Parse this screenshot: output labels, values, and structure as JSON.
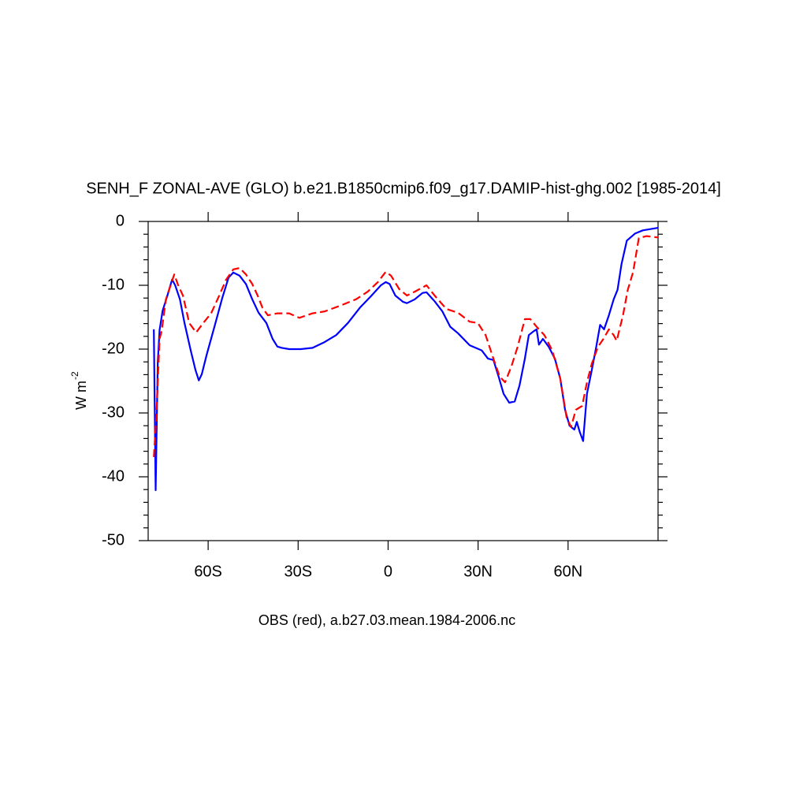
{
  "chart_data": {
    "type": "line",
    "title": "SENH_F ZONAL-AVE (GLO) b.e21.B1850cmip6.f09_g17.DAMIP-hist-ghg.002 [1985-2014]",
    "ylabel": "W m",
    "ylabel_sup": "-2",
    "xlabel": "OBS (red), a.b27.03.mean.1984-2006.nc",
    "xlim": [
      -80,
      90
    ],
    "ylim": [
      -50,
      0
    ],
    "xticks": [
      {
        "value": -60,
        "label": "60S"
      },
      {
        "value": -30,
        "label": "30S"
      },
      0,
      {
        "value": 30,
        "label": "30N"
      },
      {
        "value": 60,
        "label": "60N"
      }
    ],
    "yticks": [
      0,
      -10,
      -20,
      -30,
      -40,
      -50
    ],
    "yminor": [
      -2,
      -4,
      -6,
      -8,
      -12,
      -14,
      -16,
      -18,
      -22,
      -24,
      -26,
      -28,
      -32,
      -34,
      -36,
      -38,
      -42,
      -44,
      -46,
      -48
    ],
    "series": [
      {
        "color": "#0000ff",
        "dash": false,
        "x": [
          -78.1,
          -77.5,
          -76.8,
          -76.2,
          -75.2,
          -73.6,
          -72,
          -71,
          -69.4,
          -67.9,
          -65.8,
          -64.2,
          -63.1,
          -62.1,
          -60.5,
          -57.9,
          -55.3,
          -53.2,
          -51.6,
          -49.5,
          -47.4,
          -45.3,
          -43.2,
          -40.6,
          -38.5,
          -36.9,
          -35.4,
          -33,
          -29.1,
          -25.2,
          -21.2,
          -17.3,
          -13.4,
          -9.4,
          -5.5,
          -2.4,
          -0.8,
          0.5,
          2.4,
          5,
          6.3,
          8.9,
          11.5,
          12.8,
          15.5,
          18.1,
          20.7,
          23.3,
          27.2,
          31.2,
          33.3,
          35.1,
          36.9,
          38.5,
          40.4,
          42.2,
          43.8,
          45.6,
          46.9,
          48.5,
          49.5,
          50.3,
          51.6,
          53.5,
          55.6,
          57.4,
          59,
          60.5,
          62.1,
          62.9,
          63.9,
          65,
          66.3,
          67.9,
          69.4,
          70.7,
          72,
          73.6,
          75.2,
          76.5,
          77.8,
          79.6,
          82.3,
          84.9,
          90
        ],
        "values": [
          -16.9,
          -42.1,
          -22,
          -17,
          -14,
          -11.6,
          -9.1,
          -10,
          -12.2,
          -15.9,
          -20.2,
          -23.3,
          -24.9,
          -23.9,
          -20.9,
          -16.5,
          -12,
          -8.8,
          -8,
          -8.5,
          -9.8,
          -12.2,
          -14.3,
          -15.9,
          -18.4,
          -19.6,
          -19.8,
          -20,
          -20,
          -19.8,
          -18.9,
          -17.8,
          -15.9,
          -13.5,
          -11.6,
          -10,
          -9.5,
          -9.8,
          -11.6,
          -12.6,
          -12.8,
          -12.2,
          -11.2,
          -11.1,
          -12.5,
          -14.1,
          -16.5,
          -17.5,
          -19.4,
          -20.2,
          -21.5,
          -21.7,
          -24.4,
          -27,
          -28.4,
          -28.2,
          -25.7,
          -21.5,
          -17.8,
          -17.2,
          -16.9,
          -19.3,
          -18.4,
          -19.6,
          -21.5,
          -24.6,
          -29.5,
          -32,
          -32.6,
          -31.4,
          -33,
          -34.4,
          -27,
          -23.3,
          -19.6,
          -16.2,
          -16.9,
          -14.7,
          -12.2,
          -10.7,
          -6.7,
          -3,
          -1.9,
          -1.4,
          -1
        ]
      },
      {
        "color": "#ff0000",
        "dash": true,
        "x": [
          -78.1,
          -77.3,
          -76.2,
          -75.5,
          -74.1,
          -72.8,
          -71.3,
          -70,
          -68.4,
          -66.3,
          -64,
          -61.6,
          -59,
          -56.3,
          -54,
          -51.6,
          -49.5,
          -47.4,
          -45.3,
          -43.5,
          -41.9,
          -40.1,
          -36.9,
          -33,
          -29.6,
          -25.2,
          -21.2,
          -16,
          -10.7,
          -6.8,
          -3.4,
          -0.8,
          1,
          3.7,
          6.3,
          8.9,
          12.8,
          15.5,
          19.4,
          23.3,
          27.2,
          29.9,
          32.5,
          35.1,
          37.2,
          39,
          41.1,
          43.2,
          45.6,
          47.4,
          49.5,
          52.1,
          54.7,
          57.4,
          59.5,
          61,
          62.6,
          64.7,
          66.3,
          67.9,
          70,
          71.8,
          73.6,
          75.2,
          76.2,
          78.3,
          79.9,
          81.7,
          83.6,
          86.2,
          90
        ],
        "values": [
          -36.9,
          -30.7,
          -18.4,
          -17.2,
          -12.2,
          -10.4,
          -8.3,
          -10,
          -11.6,
          -15.9,
          -17.4,
          -15.9,
          -14.4,
          -11.6,
          -9.1,
          -7.5,
          -7.3,
          -8.3,
          -9.8,
          -11.6,
          -13.5,
          -14.7,
          -14.4,
          -14.4,
          -15.1,
          -14.4,
          -14.1,
          -13.2,
          -12.2,
          -11,
          -9.5,
          -7.9,
          -8.5,
          -10.6,
          -11.6,
          -11,
          -10,
          -11.6,
          -13.7,
          -14.3,
          -15.7,
          -15.9,
          -17.8,
          -21.5,
          -24.3,
          -25.2,
          -22.7,
          -19.6,
          -15.3,
          -15.3,
          -16.5,
          -17.8,
          -20.2,
          -24.6,
          -30.7,
          -32.2,
          -29.5,
          -28.9,
          -25.2,
          -22.3,
          -19.6,
          -18.4,
          -16.9,
          -17.8,
          -18.7,
          -14.7,
          -10.7,
          -7.9,
          -2.6,
          -2.3,
          -2.5
        ]
      }
    ]
  }
}
